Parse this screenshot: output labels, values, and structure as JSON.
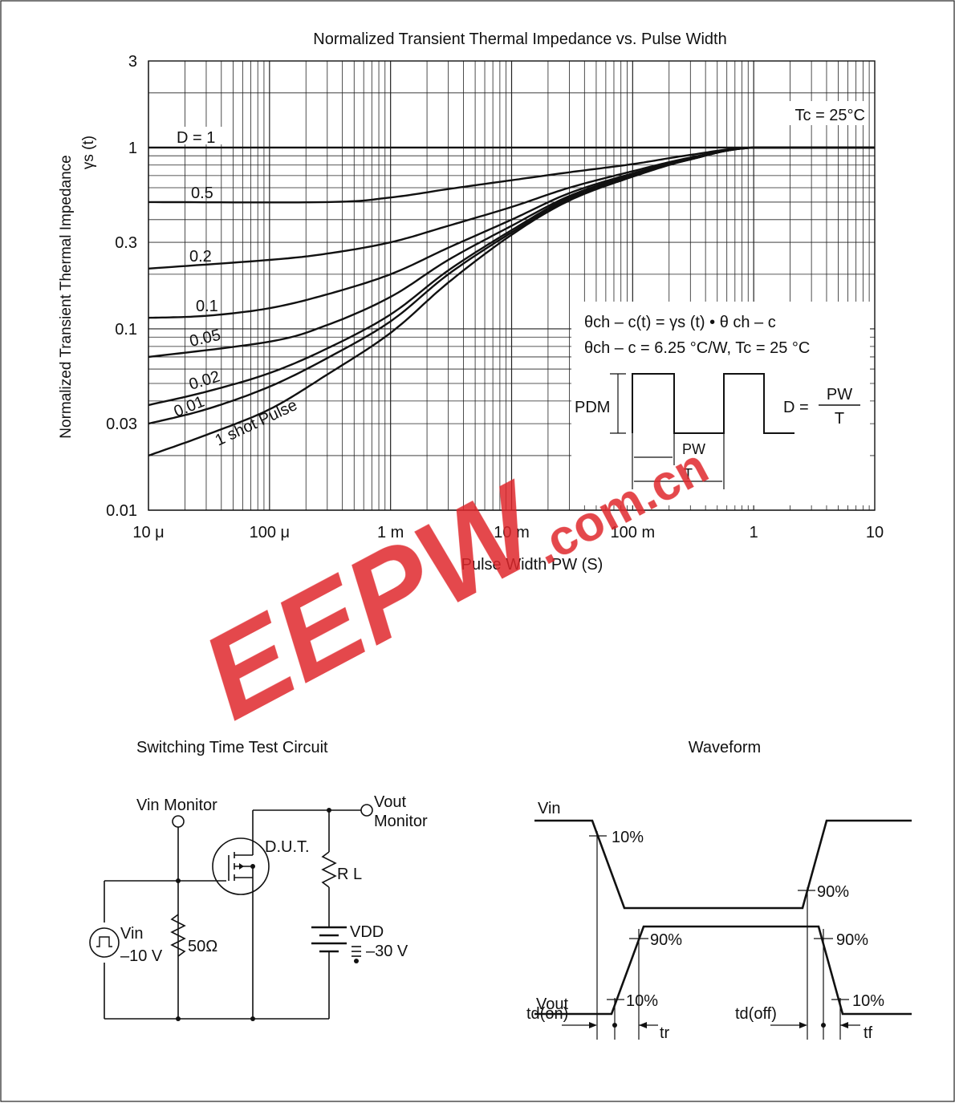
{
  "chart_data": {
    "type": "line",
    "title": "Normalized Transient Thermal Impedance vs. Pulse Width",
    "ylabel_line1": "Normalized Transient Thermal Impedance",
    "ylabel_line2": "γs  (t)",
    "xlabel": "Pulse Width   PW   (S)",
    "x_scale": "log",
    "y_scale": "log",
    "xlim": [
      1e-05,
      10
    ],
    "ylim": [
      0.01,
      3
    ],
    "x_ticks": [
      {
        "value": 1e-05,
        "label": "10 μ"
      },
      {
        "value": 0.0001,
        "label": "100 μ"
      },
      {
        "value": 0.001,
        "label": "1 m"
      },
      {
        "value": 0.01,
        "label": "10 m"
      },
      {
        "value": 0.1,
        "label": "100 m"
      },
      {
        "value": 1,
        "label": "1"
      },
      {
        "value": 10,
        "label": "10"
      }
    ],
    "y_ticks": [
      {
        "value": 0.01,
        "label": "0.01"
      },
      {
        "value": 0.03,
        "label": "0.03"
      },
      {
        "value": 0.1,
        "label": "0.1"
      },
      {
        "value": 0.3,
        "label": "0.3"
      },
      {
        "value": 1,
        "label": "1"
      },
      {
        "value": 3,
        "label": "3"
      }
    ],
    "grid": true,
    "condition": "Tc = 25°C",
    "series": [
      {
        "name": "D = 1",
        "x": [
          1e-05,
          10
        ],
        "y": [
          1,
          1
        ]
      },
      {
        "name": "0.5",
        "x": [
          1e-05,
          0.0003,
          0.001,
          0.003,
          0.01,
          0.03,
          0.1,
          0.3,
          1,
          10
        ],
        "y": [
          0.5,
          0.5,
          0.53,
          0.59,
          0.66,
          0.73,
          0.81,
          0.91,
          1,
          1
        ]
      },
      {
        "name": "0.2",
        "x": [
          1e-05,
          0.0001,
          0.0003,
          0.001,
          0.003,
          0.01,
          0.03,
          0.1,
          0.3,
          1,
          10
        ],
        "y": [
          0.215,
          0.24,
          0.26,
          0.3,
          0.37,
          0.47,
          0.6,
          0.74,
          0.88,
          1,
          1
        ]
      },
      {
        "name": "0.1",
        "x": [
          1e-05,
          3e-05,
          0.0001,
          0.0003,
          0.001,
          0.003,
          0.01,
          0.03,
          0.1,
          0.3,
          1,
          10
        ],
        "y": [
          0.115,
          0.118,
          0.13,
          0.155,
          0.2,
          0.28,
          0.4,
          0.56,
          0.72,
          0.87,
          1,
          1
        ]
      },
      {
        "name": "0.05",
        "x": [
          1e-05,
          0.0001,
          0.0003,
          0.001,
          0.003,
          0.01,
          0.03,
          0.1,
          0.3,
          1,
          10
        ],
        "y": [
          0.07,
          0.085,
          0.105,
          0.15,
          0.24,
          0.37,
          0.54,
          0.71,
          0.86,
          1,
          1
        ]
      },
      {
        "name": "0.02",
        "x": [
          1e-05,
          3e-05,
          0.0001,
          0.0003,
          0.001,
          0.003,
          0.01,
          0.03,
          0.1,
          0.3,
          1,
          10
        ],
        "y": [
          0.038,
          0.045,
          0.057,
          0.078,
          0.12,
          0.21,
          0.35,
          0.53,
          0.7,
          0.86,
          1,
          1
        ]
      },
      {
        "name": "0.01",
        "x": [
          1e-05,
          3e-05,
          0.0001,
          0.0003,
          0.001,
          0.003,
          0.01,
          0.03,
          0.1,
          0.3,
          1,
          10
        ],
        "y": [
          0.03,
          0.036,
          0.048,
          0.069,
          0.11,
          0.2,
          0.34,
          0.52,
          0.7,
          0.86,
          1,
          1
        ]
      },
      {
        "name": "1 shot Pulse",
        "x": [
          1e-05,
          3e-05,
          0.0001,
          0.0003,
          0.001,
          0.003,
          0.01,
          0.03,
          0.1,
          0.3,
          1,
          10
        ],
        "y": [
          0.02,
          0.026,
          0.036,
          0.056,
          0.095,
          0.18,
          0.33,
          0.51,
          0.69,
          0.86,
          1,
          1
        ]
      }
    ],
    "formula_line1": "θch – c(t) = γs (t) • θ ch – c",
    "formula_line2": "θch – c = 6.25 °C/W, Tc = 25 °C",
    "inset": {
      "pdm_label": "PDM",
      "pw_label": "PW",
      "t_label": "T",
      "d_label": "D =",
      "d_num": "PW",
      "d_den": "T"
    }
  },
  "circuit": {
    "title": "Switching Time Test Circuit",
    "vin_monitor": "Vin Monitor",
    "vout_monitor_line1": "Vout",
    "vout_monitor_line2": "Monitor",
    "dut": "D.U.T.",
    "rl": "R L",
    "vdd": "VDD",
    "vdd_value": "–30 V",
    "vin": "Vin",
    "vin_value": "–10 V",
    "resistor": "50Ω"
  },
  "waveform": {
    "title": "Waveform",
    "vin": "Vin",
    "vout": "Vout",
    "p10_a": "10%",
    "p90_a": "90%",
    "p90_b": "90%",
    "p90_c": "90%",
    "p10_b": "10%",
    "p10_c": "10%",
    "td_on": "td(on)",
    "tr": "tr",
    "td_off": "td(off)",
    "tf": "tf"
  },
  "watermark": {
    "brand": "EEPW",
    "domain": ".com.cn"
  }
}
